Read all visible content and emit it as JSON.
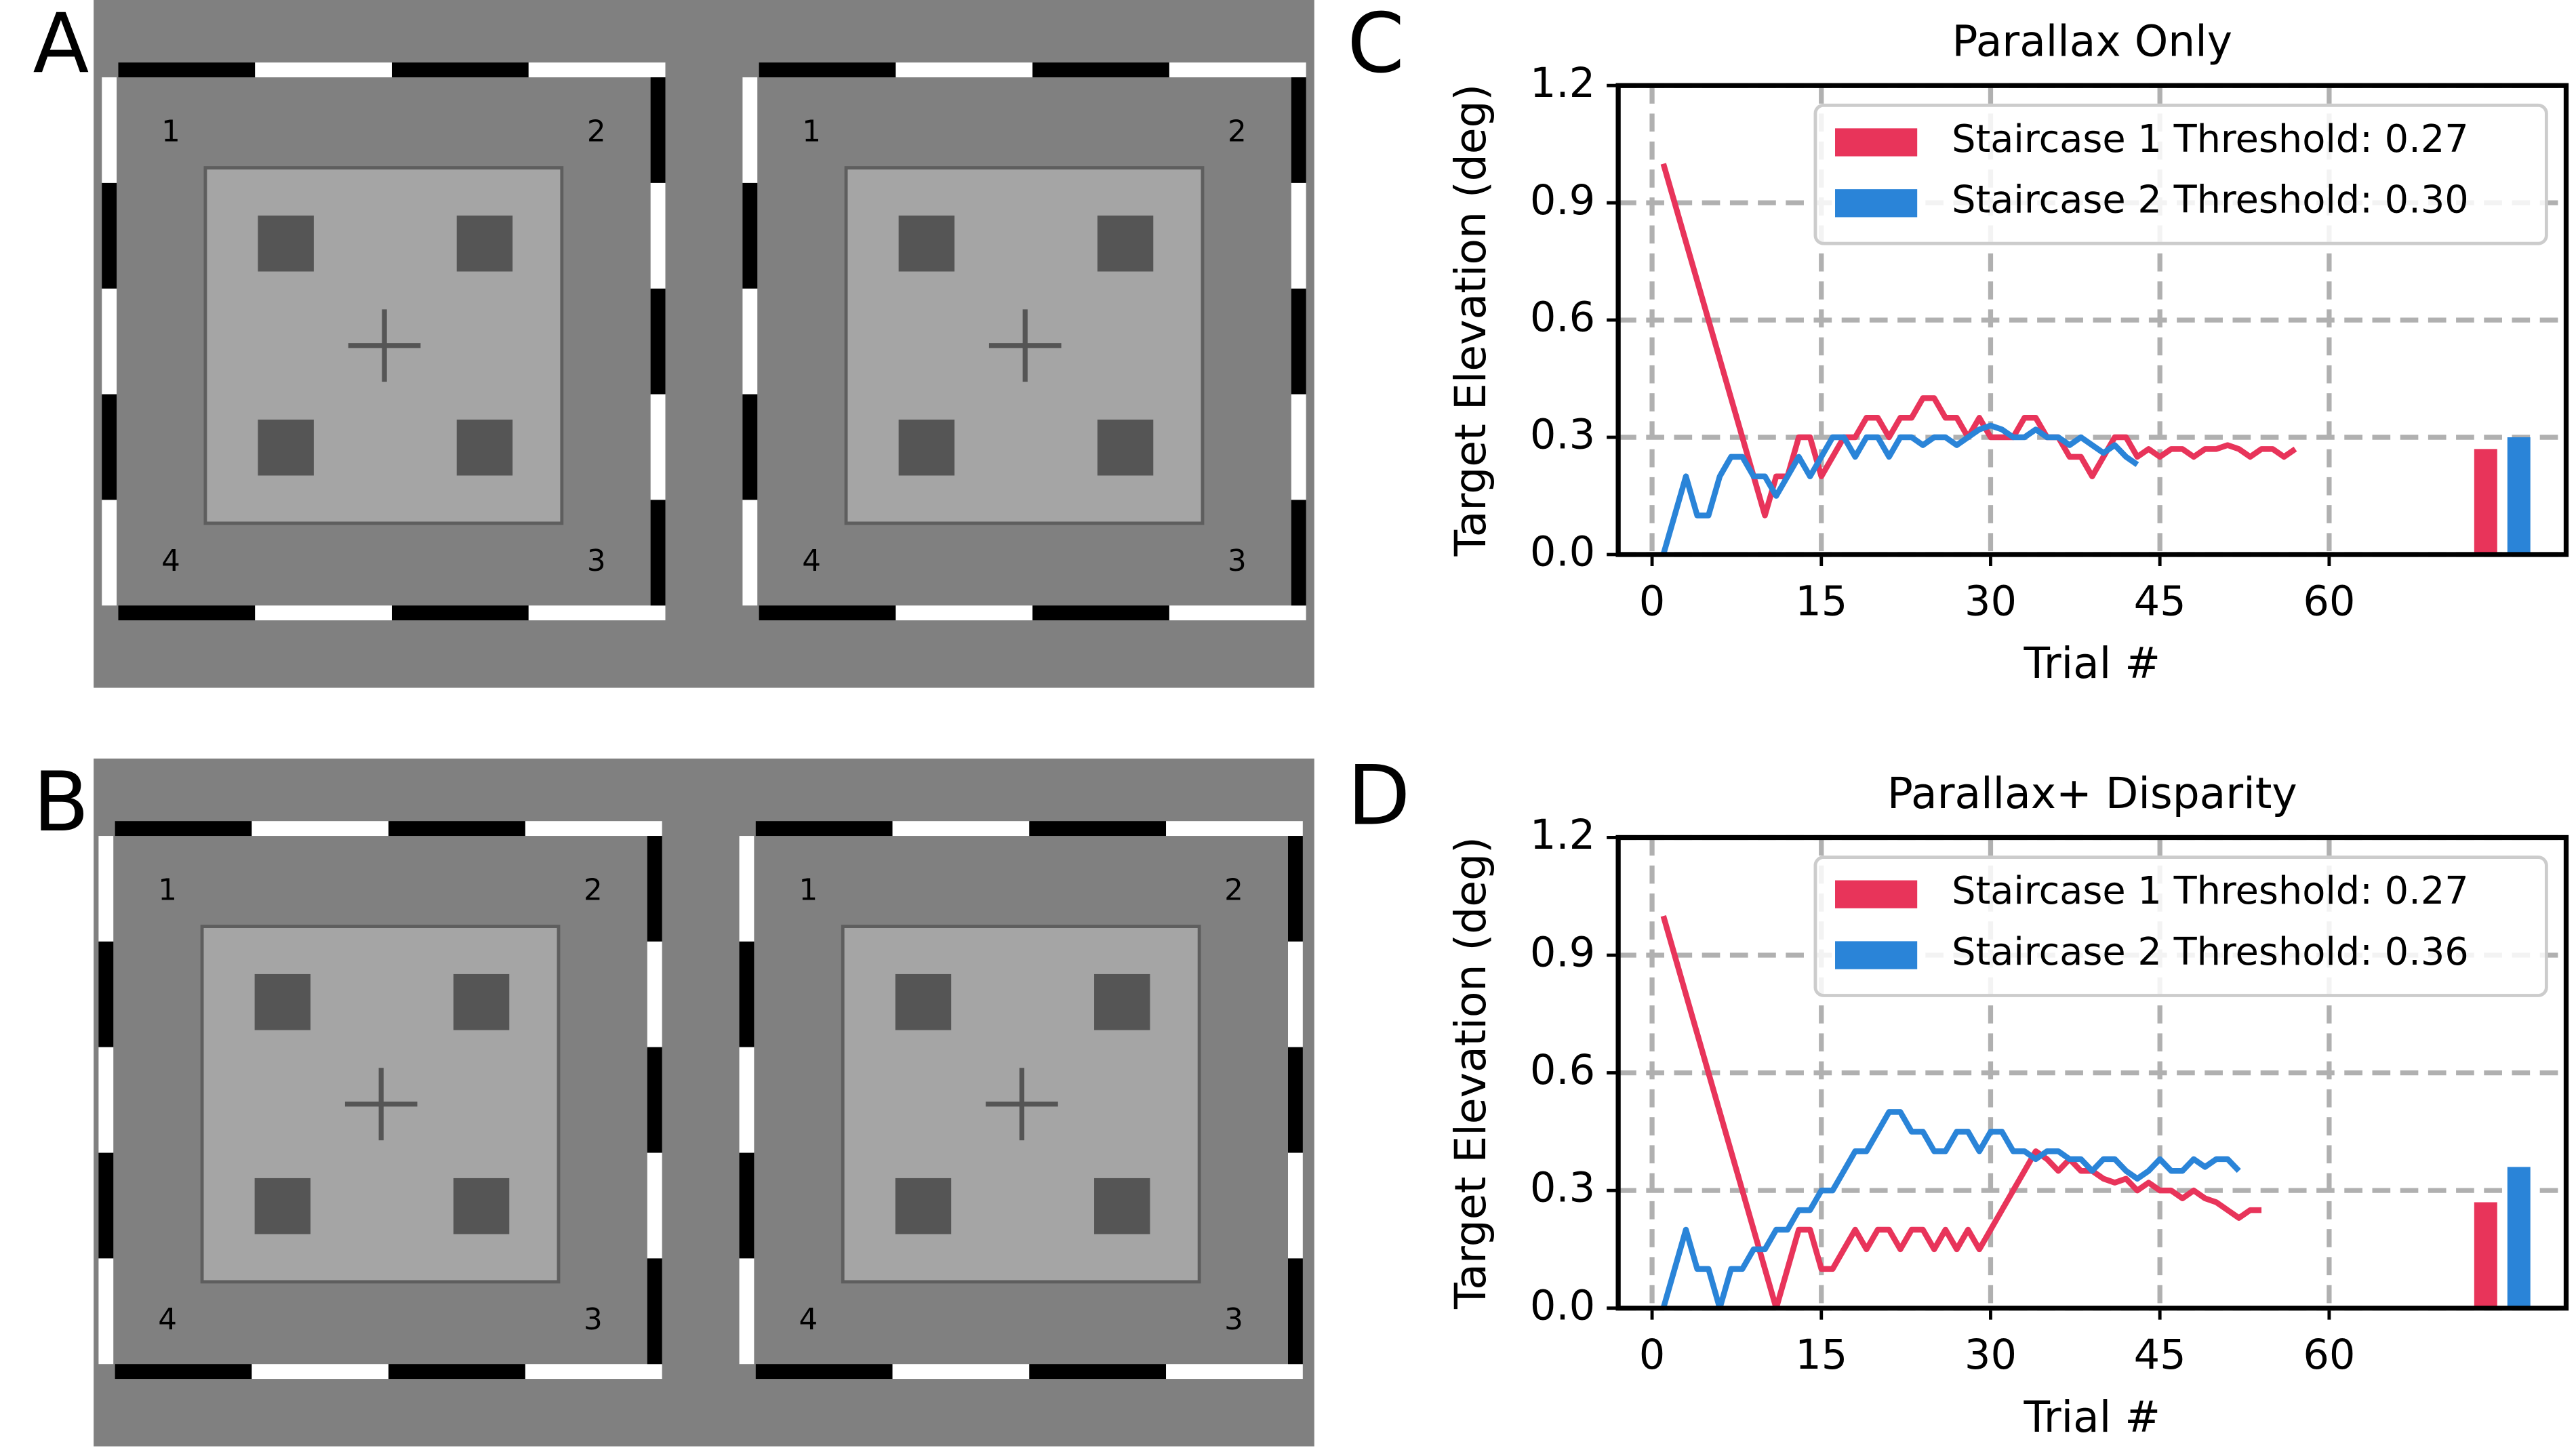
{
  "panels": [
    {
      "label": "A",
      "stimuli": [
        {
          "corners": [
            "1",
            "2",
            "3",
            "4"
          ]
        },
        {
          "corners": [
            "1",
            "2",
            "3",
            "4"
          ]
        }
      ]
    },
    {
      "label": "B",
      "stimuli": [
        {
          "corners": [
            "1",
            "2",
            "3",
            "4"
          ]
        },
        {
          "corners": [
            "1",
            "2",
            "3",
            "4"
          ]
        }
      ]
    }
  ],
  "chart_data": [
    {
      "type": "line",
      "label": "C",
      "title": "Parallax Only",
      "xlabel": "Trial #",
      "ylabel": "Target Elevation (deg)",
      "x": [
        1,
        2,
        3,
        4,
        5,
        6,
        7,
        8,
        9,
        10,
        11,
        12,
        13,
        14,
        15,
        16,
        17,
        18,
        19,
        20,
        21,
        22,
        23,
        24,
        25,
        26,
        27,
        28,
        29,
        30,
        31,
        32,
        33,
        34,
        35,
        36,
        37,
        38,
        39,
        40,
        41,
        42,
        43,
        44,
        45,
        46,
        47,
        48,
        49,
        50,
        51,
        52,
        53,
        54,
        55,
        56,
        57
      ],
      "series": [
        {
          "name": "Staircase 1 Threshold: 0.27",
          "color": "#e8345a",
          "threshold": 0.27,
          "values": [
            1.0,
            0.9,
            0.8,
            0.7,
            0.6,
            0.5,
            0.4,
            0.3,
            0.2,
            0.1,
            0.2,
            0.2,
            0.3,
            0.3,
            0.2,
            0.25,
            0.3,
            0.3,
            0.35,
            0.35,
            0.3,
            0.35,
            0.35,
            0.4,
            0.4,
            0.35,
            0.35,
            0.3,
            0.35,
            0.3,
            0.3,
            0.3,
            0.35,
            0.35,
            0.3,
            0.3,
            0.25,
            0.25,
            0.2,
            0.25,
            0.3,
            0.3,
            0.25,
            0.27,
            0.25,
            0.27,
            0.27,
            0.25,
            0.27,
            0.27,
            0.28,
            0.27,
            0.25,
            0.27,
            0.27,
            0.25,
            0.27
          ]
        },
        {
          "name": "Staircase 2 Threshold: 0.30",
          "color": "#2a84d8",
          "threshold": 0.3,
          "values": [
            0,
            0.1,
            0.2,
            0.1,
            0.1,
            0.2,
            0.25,
            0.25,
            0.2,
            0.2,
            0.15,
            0.2,
            0.25,
            0.2,
            0.25,
            0.3,
            0.3,
            0.25,
            0.3,
            0.3,
            0.25,
            0.3,
            0.3,
            0.28,
            0.3,
            0.3,
            0.28,
            0.3,
            0.32,
            0.33,
            0.32,
            0.3,
            0.3,
            0.32,
            0.3,
            0.3,
            0.28,
            0.3,
            0.28,
            0.26,
            0.28,
            0.25,
            0.23,
            null,
            null,
            null,
            null,
            null,
            null,
            null,
            null,
            null,
            null,
            null,
            null,
            null,
            null
          ]
        }
      ],
      "xlim": [
        -3,
        81
      ],
      "xticks": [
        0,
        15,
        30,
        45,
        60
      ],
      "ylim": [
        0,
        1.2
      ],
      "yticks": [
        {
          "value": 0,
          "label": "0.0"
        },
        0.3,
        0.6,
        0.9,
        1.2
      ],
      "grid": true,
      "legend": "upper right"
    },
    {
      "type": "line",
      "label": "D",
      "title": "Parallax+  Disparity",
      "xlabel": "Trial #",
      "ylabel": "Target Elevation (deg)",
      "x": [
        1,
        2,
        3,
        4,
        5,
        6,
        7,
        8,
        9,
        10,
        11,
        12,
        13,
        14,
        15,
        16,
        17,
        18,
        19,
        20,
        21,
        22,
        23,
        24,
        25,
        26,
        27,
        28,
        29,
        30,
        31,
        32,
        33,
        34,
        35,
        36,
        37,
        38,
        39,
        40,
        41,
        42,
        43,
        44,
        45,
        46,
        47,
        48,
        49,
        50,
        51,
        52,
        53,
        54
      ],
      "series": [
        {
          "name": "Staircase 1 Threshold: 0.27",
          "color": "#e8345a",
          "threshold": 0.27,
          "values": [
            1.0,
            0.9,
            0.8,
            0.7,
            0.6,
            0.5,
            0.4,
            0.3,
            0.2,
            0.1,
            0,
            0.1,
            0.2,
            0.2,
            0.1,
            0.1,
            0.15,
            0.2,
            0.15,
            0.2,
            0.2,
            0.15,
            0.2,
            0.2,
            0.15,
            0.2,
            0.15,
            0.2,
            0.15,
            0.2,
            0.25,
            0.3,
            0.35,
            0.4,
            0.38,
            0.35,
            0.38,
            0.35,
            0.35,
            0.33,
            0.32,
            0.33,
            0.3,
            0.32,
            0.3,
            0.3,
            0.28,
            0.3,
            0.28,
            0.27,
            0.25,
            0.23,
            0.25,
            0.25
          ]
        },
        {
          "name": "Staircase 2 Threshold: 0.36",
          "color": "#2a84d8",
          "threshold": 0.36,
          "values": [
            0,
            0.1,
            0.2,
            0.1,
            0.1,
            0,
            0.1,
            0.1,
            0.15,
            0.15,
            0.2,
            0.2,
            0.25,
            0.25,
            0.3,
            0.3,
            0.35,
            0.4,
            0.4,
            0.45,
            0.5,
            0.5,
            0.45,
            0.45,
            0.4,
            0.4,
            0.45,
            0.45,
            0.4,
            0.45,
            0.45,
            0.4,
            0.4,
            0.38,
            0.4,
            0.4,
            0.38,
            0.38,
            0.35,
            0.38,
            0.38,
            0.35,
            0.33,
            0.35,
            0.38,
            0.35,
            0.35,
            0.38,
            0.36,
            0.38,
            0.38,
            0.35,
            null,
            null
          ]
        }
      ],
      "xlim": [
        -3,
        81
      ],
      "xticks": [
        0,
        15,
        30,
        45,
        60
      ],
      "ylim": [
        0,
        1.2
      ],
      "yticks": [
        {
          "value": 0,
          "label": "0.0"
        },
        0.3,
        0.6,
        0.9,
        1.2
      ],
      "grid": true,
      "legend": "upper right"
    }
  ]
}
